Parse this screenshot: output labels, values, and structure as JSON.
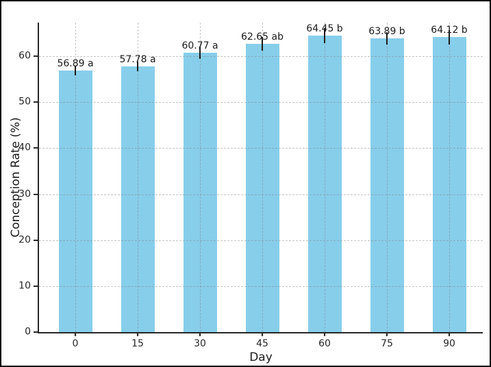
{
  "chart_data": {
    "type": "bar",
    "title": "",
    "xlabel": "Day",
    "ylabel": "Conception Rate (%)",
    "categories": [
      "0",
      "15",
      "30",
      "45",
      "60",
      "75",
      "90"
    ],
    "values": [
      56.89,
      57.78,
      60.77,
      62.65,
      64.45,
      63.89,
      64.12
    ],
    "errors": [
      1.1,
      1.0,
      1.3,
      1.5,
      1.6,
      1.4,
      1.6
    ],
    "bar_labels": [
      "56.89 a",
      "57.78 a",
      "60.77 a",
      "62.65 ab",
      "64.45 b",
      "63.89 b",
      "64.12 b"
    ],
    "yticks": [
      0,
      10,
      20,
      30,
      40,
      50,
      60
    ],
    "ylim": [
      0,
      67.3
    ],
    "grid": true,
    "grid_style": "dashed",
    "legend": null,
    "colors": {
      "bar_fill": "#87CEEB",
      "error_bar": "#1a1a1a",
      "gridline": "#c7c7c7",
      "spine": "#262626",
      "text": "#1a1a1a",
      "background": "#ffffff",
      "frame_border": "#000000"
    }
  }
}
